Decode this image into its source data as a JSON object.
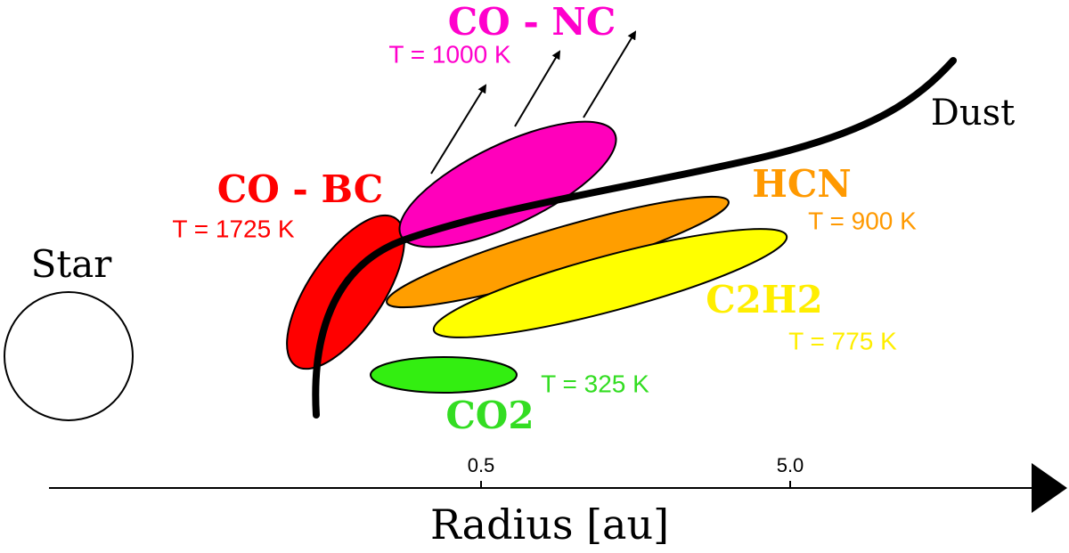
{
  "star": {
    "label": "Star"
  },
  "dust": {
    "label": "Dust"
  },
  "components": [
    {
      "name": "CO - NC",
      "temperature": "T = 1000 K"
    },
    {
      "name": "CO - BC",
      "temperature": "T = 1725 K"
    },
    {
      "name": "HCN",
      "temperature": "T = 900 K"
    },
    {
      "name": "C2H2",
      "temperature": "T = 775 K"
    },
    {
      "name": "CO2",
      "temperature": "T = 325 K"
    }
  ],
  "axis": {
    "label": "Radius [au]",
    "ticks": [
      "0.5",
      "5.0"
    ]
  }
}
